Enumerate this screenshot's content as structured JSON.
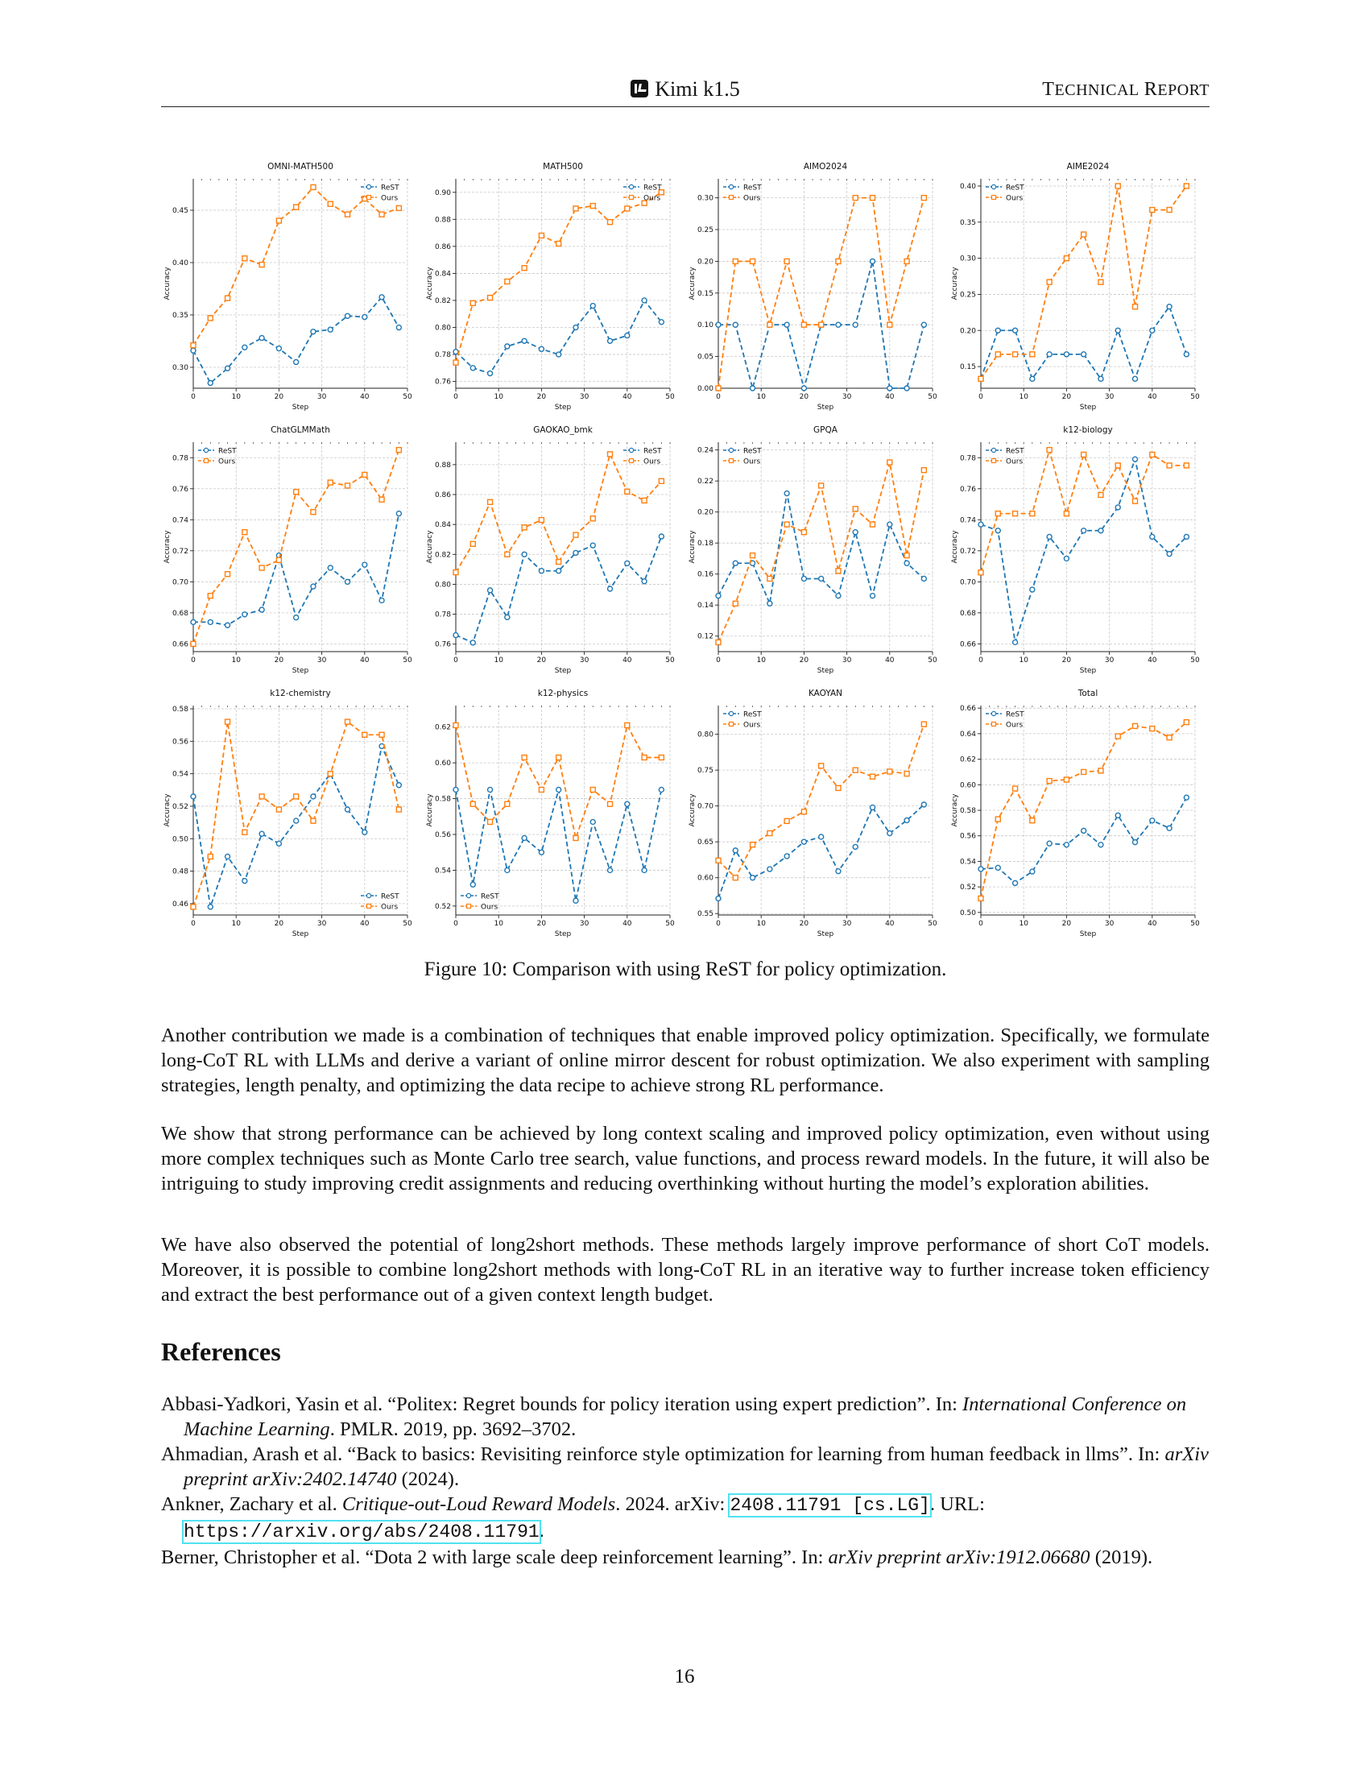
{
  "header": {
    "title": "Kimi k1.5",
    "right_text": "TECHNICAL REPORT"
  },
  "chart_data": [
    {
      "type": "line",
      "title": "OMNI-MATH500",
      "xlabel": "Step",
      "ylabel": "Accuracy",
      "xlim": [
        0,
        50
      ],
      "ylim": [
        0.28,
        0.48
      ],
      "yticks": [
        0.3,
        0.35,
        0.4,
        0.45
      ],
      "decimals": 2,
      "legend": "top-right",
      "x": [
        0,
        4,
        8,
        12,
        16,
        20,
        24,
        28,
        32,
        36,
        40,
        44,
        48
      ],
      "series": [
        {
          "name": "ReST",
          "values": [
            0.316,
            0.285,
            0.299,
            0.319,
            0.328,
            0.318,
            0.305,
            0.334,
            0.336,
            0.349,
            0.348,
            0.367,
            0.338
          ]
        },
        {
          "name": "Ours",
          "values": [
            0.321,
            0.347,
            0.366,
            0.404,
            0.398,
            0.44,
            0.453,
            0.472,
            0.456,
            0.446,
            0.461,
            0.446,
            0.452
          ]
        }
      ]
    },
    {
      "type": "line",
      "title": "MATH500",
      "xlabel": "Step",
      "ylabel": "Accuracy",
      "xlim": [
        0,
        50
      ],
      "ylim": [
        0.755,
        0.91
      ],
      "yticks": [
        0.76,
        0.78,
        0.8,
        0.82,
        0.84,
        0.86,
        0.88,
        0.9
      ],
      "decimals": 2,
      "legend": "top-right",
      "x": [
        0,
        4,
        8,
        12,
        16,
        20,
        24,
        28,
        32,
        36,
        40,
        44,
        48
      ],
      "series": [
        {
          "name": "ReST",
          "values": [
            0.782,
            0.77,
            0.766,
            0.786,
            0.79,
            0.784,
            0.78,
            0.8,
            0.816,
            0.79,
            0.794,
            0.82,
            0.804
          ]
        },
        {
          "name": "Ours",
          "values": [
            0.774,
            0.818,
            0.822,
            0.834,
            0.844,
            0.868,
            0.862,
            0.888,
            0.89,
            0.878,
            0.888,
            0.892,
            0.9
          ]
        }
      ]
    },
    {
      "type": "line",
      "title": "AIMO2024",
      "xlabel": "Step",
      "ylabel": "Accuracy",
      "xlim": [
        0,
        50
      ],
      "ylim": [
        0,
        0.33
      ],
      "yticks": [
        0.0,
        0.05,
        0.1,
        0.15,
        0.2,
        0.25,
        0.3
      ],
      "decimals": 2,
      "legend": "top-left",
      "x": [
        0,
        4,
        8,
        12,
        16,
        20,
        24,
        28,
        32,
        36,
        40,
        44,
        48
      ],
      "series": [
        {
          "name": "ReST",
          "values": [
            0.1,
            0.1,
            0.0,
            0.1,
            0.1,
            0.0,
            0.1,
            0.1,
            0.1,
            0.2,
            0.0,
            0.0,
            0.1
          ]
        },
        {
          "name": "Ours",
          "values": [
            0.0,
            0.2,
            0.2,
            0.1,
            0.2,
            0.1,
            0.1,
            0.2,
            0.3,
            0.3,
            0.1,
            0.2,
            0.3
          ]
        }
      ]
    },
    {
      "type": "line",
      "title": "AIME2024",
      "xlabel": "Step",
      "ylabel": "Accuracy",
      "xlim": [
        0,
        50
      ],
      "ylim": [
        0.12,
        0.41
      ],
      "yticks": [
        0.15,
        0.2,
        0.25,
        0.3,
        0.35,
        0.4
      ],
      "decimals": 2,
      "legend": "top-left",
      "x": [
        0,
        4,
        8,
        12,
        16,
        20,
        24,
        28,
        32,
        36,
        40,
        44,
        48
      ],
      "series": [
        {
          "name": "ReST",
          "values": [
            0.133,
            0.2,
            0.2,
            0.133,
            0.167,
            0.167,
            0.167,
            0.133,
            0.2,
            0.133,
            0.2,
            0.233,
            0.167
          ]
        },
        {
          "name": "Ours",
          "values": [
            0.133,
            0.167,
            0.167,
            0.167,
            0.267,
            0.3,
            0.333,
            0.267,
            0.4,
            0.233,
            0.367,
            0.367,
            0.4
          ]
        }
      ]
    },
    {
      "type": "line",
      "title": "ChatGLMMath",
      "xlabel": "Step",
      "ylabel": "Accuracy",
      "xlim": [
        0,
        50
      ],
      "ylim": [
        0.655,
        0.79
      ],
      "yticks": [
        0.66,
        0.68,
        0.7,
        0.72,
        0.74,
        0.76,
        0.78
      ],
      "decimals": 2,
      "legend": "top-left",
      "x": [
        0,
        4,
        8,
        12,
        16,
        20,
        24,
        28,
        32,
        36,
        40,
        44,
        48
      ],
      "series": [
        {
          "name": "ReST",
          "values": [
            0.674,
            0.674,
            0.672,
            0.679,
            0.682,
            0.717,
            0.677,
            0.697,
            0.709,
            0.7,
            0.711,
            0.688,
            0.744
          ]
        },
        {
          "name": "Ours",
          "values": [
            0.66,
            0.691,
            0.705,
            0.732,
            0.709,
            0.714,
            0.758,
            0.745,
            0.764,
            0.762,
            0.769,
            0.753,
            0.785
          ]
        }
      ]
    },
    {
      "type": "line",
      "title": "GAOKAO_bmk",
      "xlabel": "Step",
      "ylabel": "Accuracy",
      "xlim": [
        0,
        50
      ],
      "ylim": [
        0.755,
        0.895
      ],
      "yticks": [
        0.76,
        0.78,
        0.8,
        0.82,
        0.84,
        0.86,
        0.88
      ],
      "decimals": 2,
      "legend": "top-right",
      "x": [
        0,
        4,
        8,
        12,
        16,
        20,
        24,
        28,
        32,
        36,
        40,
        44,
        48
      ],
      "series": [
        {
          "name": "ReST",
          "values": [
            0.766,
            0.761,
            0.796,
            0.778,
            0.82,
            0.809,
            0.809,
            0.821,
            0.826,
            0.797,
            0.814,
            0.802,
            0.832
          ]
        },
        {
          "name": "Ours",
          "values": [
            0.808,
            0.827,
            0.855,
            0.82,
            0.838,
            0.843,
            0.815,
            0.833,
            0.844,
            0.887,
            0.862,
            0.856,
            0.869
          ]
        }
      ]
    },
    {
      "type": "line",
      "title": "GPQA",
      "xlabel": "Step",
      "ylabel": "Accuracy",
      "xlim": [
        0,
        50
      ],
      "ylim": [
        0.11,
        0.245
      ],
      "yticks": [
        0.12,
        0.14,
        0.16,
        0.18,
        0.2,
        0.22,
        0.24
      ],
      "decimals": 2,
      "legend": "top-left",
      "x": [
        0,
        4,
        8,
        12,
        16,
        20,
        24,
        28,
        32,
        36,
        40,
        44,
        48
      ],
      "series": [
        {
          "name": "ReST",
          "values": [
            0.146,
            0.167,
            0.167,
            0.141,
            0.212,
            0.157,
            0.157,
            0.146,
            0.187,
            0.146,
            0.192,
            0.167,
            0.157
          ]
        },
        {
          "name": "Ours",
          "values": [
            0.116,
            0.141,
            0.172,
            0.157,
            0.192,
            0.187,
            0.217,
            0.162,
            0.202,
            0.192,
            0.232,
            0.172,
            0.227
          ]
        }
      ]
    },
    {
      "type": "line",
      "title": "k12-biology",
      "xlabel": "Step",
      "ylabel": "Accuracy",
      "xlim": [
        0,
        50
      ],
      "ylim": [
        0.655,
        0.79
      ],
      "yticks": [
        0.66,
        0.68,
        0.7,
        0.72,
        0.74,
        0.76,
        0.78
      ],
      "decimals": 2,
      "legend": "top-left",
      "x": [
        0,
        4,
        8,
        12,
        16,
        20,
        24,
        28,
        32,
        36,
        40,
        44,
        48
      ],
      "series": [
        {
          "name": "ReST",
          "values": [
            0.737,
            0.733,
            0.661,
            0.695,
            0.729,
            0.715,
            0.733,
            0.733,
            0.748,
            0.779,
            0.729,
            0.718,
            0.729
          ]
        },
        {
          "name": "Ours",
          "values": [
            0.706,
            0.744,
            0.744,
            0.744,
            0.785,
            0.744,
            0.782,
            0.756,
            0.775,
            0.752,
            0.782,
            0.775,
            0.775
          ]
        }
      ]
    },
    {
      "type": "line",
      "title": "k12-chemistry",
      "xlabel": "Step",
      "ylabel": "Accuracy",
      "xlim": [
        0,
        50
      ],
      "ylim": [
        0.453,
        0.582
      ],
      "yticks": [
        0.46,
        0.48,
        0.5,
        0.52,
        0.54,
        0.56,
        0.58
      ],
      "decimals": 2,
      "legend": "bottom-right",
      "x": [
        0,
        4,
        8,
        12,
        16,
        20,
        24,
        28,
        32,
        36,
        40,
        44,
        48
      ],
      "series": [
        {
          "name": "ReST",
          "values": [
            0.526,
            0.458,
            0.489,
            0.474,
            0.503,
            0.497,
            0.511,
            0.526,
            0.54,
            0.518,
            0.504,
            0.557,
            0.533
          ]
        },
        {
          "name": "Ours",
          "values": [
            0.458,
            0.489,
            0.572,
            0.504,
            0.526,
            0.518,
            0.526,
            0.511,
            0.54,
            0.572,
            0.564,
            0.564,
            0.518
          ]
        }
      ]
    },
    {
      "type": "line",
      "title": "k12-physics",
      "xlabel": "Step",
      "ylabel": "Accuracy",
      "xlim": [
        0,
        50
      ],
      "ylim": [
        0.515,
        0.632
      ],
      "yticks": [
        0.52,
        0.54,
        0.56,
        0.58,
        0.6,
        0.62
      ],
      "decimals": 2,
      "legend": "bottom-left",
      "x": [
        0,
        4,
        8,
        12,
        16,
        20,
        24,
        28,
        32,
        36,
        40,
        44,
        48
      ],
      "series": [
        {
          "name": "ReST",
          "values": [
            0.585,
            0.532,
            0.585,
            0.54,
            0.558,
            0.55,
            0.585,
            0.523,
            0.567,
            0.54,
            0.577,
            0.54,
            0.585
          ]
        },
        {
          "name": "Ours",
          "values": [
            0.621,
            0.577,
            0.567,
            0.577,
            0.603,
            0.585,
            0.603,
            0.558,
            0.585,
            0.577,
            0.621,
            0.603,
            0.603
          ]
        }
      ]
    },
    {
      "type": "line",
      "title": "KAOYAN",
      "xlabel": "Step",
      "ylabel": "Accuracy",
      "xlim": [
        0,
        50
      ],
      "ylim": [
        0.548,
        0.84
      ],
      "yticks": [
        0.55,
        0.6,
        0.65,
        0.7,
        0.75,
        0.8
      ],
      "decimals": 2,
      "legend": "top-left",
      "x": [
        0,
        4,
        8,
        12,
        16,
        20,
        24,
        28,
        32,
        36,
        40,
        44,
        48
      ],
      "series": [
        {
          "name": "ReST",
          "values": [
            0.571,
            0.638,
            0.6,
            0.612,
            0.63,
            0.65,
            0.657,
            0.609,
            0.643,
            0.698,
            0.662,
            0.68,
            0.702
          ]
        },
        {
          "name": "Ours",
          "values": [
            0.624,
            0.6,
            0.646,
            0.662,
            0.679,
            0.692,
            0.756,
            0.725,
            0.75,
            0.741,
            0.748,
            0.745,
            0.814
          ]
        }
      ]
    },
    {
      "type": "line",
      "title": "Total",
      "xlabel": "Step",
      "ylabel": "Accuracy",
      "xlim": [
        0,
        50
      ],
      "ylim": [
        0.498,
        0.662
      ],
      "yticks": [
        0.5,
        0.52,
        0.54,
        0.56,
        0.58,
        0.6,
        0.62,
        0.64,
        0.66
      ],
      "decimals": 2,
      "legend": "top-left",
      "x": [
        0,
        4,
        8,
        12,
        16,
        20,
        24,
        28,
        32,
        36,
        40,
        44,
        48
      ],
      "series": [
        {
          "name": "ReST",
          "values": [
            0.534,
            0.535,
            0.523,
            0.532,
            0.554,
            0.553,
            0.564,
            0.553,
            0.576,
            0.555,
            0.572,
            0.566,
            0.59
          ]
        },
        {
          "name": "Ours",
          "values": [
            0.511,
            0.573,
            0.597,
            0.572,
            0.603,
            0.604,
            0.61,
            0.611,
            0.638,
            0.646,
            0.644,
            0.637,
            0.649
          ]
        }
      ]
    }
  ],
  "figure_colors": {
    "rest": "#1f77b4",
    "ours": "#ff7f0e"
  },
  "caption": "Figure 10: Comparison with using ReST for policy optimization.",
  "paragraphs": [
    "Another contribution we made is a combination of techniques that enable improved policy optimization. Specifically, we formulate long-CoT RL with LLMs and derive a variant of online mirror descent for robust optimization. We also experiment with sampling strategies, length penalty, and optimizing the data recipe to achieve strong RL performance.",
    "We show that strong performance can be achieved by long context scaling and improved policy optimization, even without using more complex techniques such as Monte Carlo tree search, value functions, and process reward models. In the future, it will also be intriguing to study improving credit assignments and reducing overthinking without hurting the model’s exploration abilities.",
    "We have also observed the potential of long2short methods. These methods largely improve performance of short CoT models. Moreover, it is possible to combine long2short methods with long-CoT RL in an iterative way to further increase token efficiency and extract the best performance out of a given context length budget."
  ],
  "references_title": "References",
  "references": [
    {
      "authors": "Abbasi-Yadkori, Yasin et al. “Politex: Regret bounds for policy iteration using expert prediction”. In: ",
      "venue": "International Conference on Machine Learning",
      "rest": ". PMLR. 2019, pp. 3692–3702."
    },
    {
      "authors": "Ahmadian, Arash et al. “Back to basics: Revisiting reinforce style optimization for learning from human feedback in llms”. In: ",
      "venue": "arXiv preprint arXiv:2402.14740",
      "rest": " (2024)."
    },
    {
      "authors": "Ankner, Zachary et al. ",
      "venue": "Critique-out-Loud Reward Models",
      "rest": ". 2024. arXiv: ",
      "arxiv": "2408.11791 [cs.LG]",
      "url_label": ". URL: ",
      "url": "https://arxiv.org/abs/2408.11791",
      "end": "."
    },
    {
      "authors": "Berner, Christopher et al. “Dota 2 with large scale deep reinforcement learning”. In: ",
      "venue": "arXiv preprint arXiv:1912.06680",
      "rest": " (2019)."
    }
  ],
  "page_number": "16"
}
